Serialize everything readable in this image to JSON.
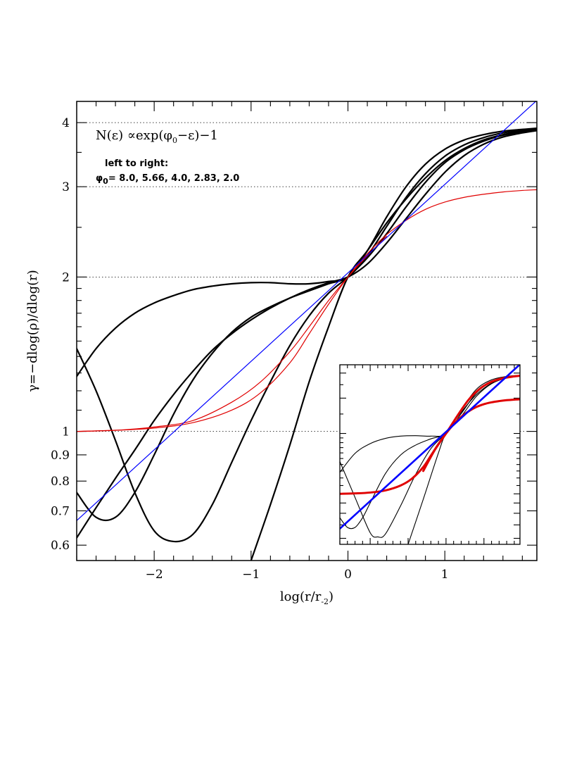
{
  "chart_data": {
    "type": "line",
    "xlabel": "log(r/r",
    "xlabel_sub": "-2",
    "xlabel_close": ")",
    "ylabel": "γ=−dlog(ρ)/dlog(r)",
    "xlim": [
      -2.8,
      1.95
    ],
    "ylim": [
      0.56,
      4.4
    ],
    "yscale": "log",
    "x_ticks": [
      -2,
      -1,
      0,
      1
    ],
    "x_tick_labels": [
      "−2",
      "−1",
      "0",
      "1"
    ],
    "y_ticks": [
      0.6,
      0.7,
      0.8,
      0.9,
      1,
      2,
      3,
      4
    ],
    "y_tick_labels": [
      "0.6",
      "0.7",
      "0.8",
      "0.9",
      "1",
      "2",
      "3",
      "4"
    ],
    "hlines": [
      1,
      2,
      3,
      4
    ],
    "annotation_formula": "N(ε) ∝exp(φ",
    "annotation_formula_sub": "0",
    "annotation_formula_end": "−ε)−1",
    "annotation_line1": "left to right:",
    "annotation_phi": "φ",
    "annotation_phi_sub": "0",
    "annotation_line2": "= 8.0, 5.66, 4.0, 2.83, 2.0",
    "series": [
      {
        "color": "#000000",
        "width": 2.2,
        "x": [
          -2.8,
          -2.6,
          -2.4,
          -2.2,
          -2.0,
          -1.8,
          -1.6,
          -1.4,
          -1.2,
          -1.0,
          -0.8,
          -0.6,
          -0.4,
          -0.2,
          0,
          0.2,
          0.4,
          0.6,
          0.8,
          1.0,
          1.2,
          1.4,
          1.6,
          1.8,
          1.95
        ],
        "y": [
          1.28,
          1.45,
          1.59,
          1.7,
          1.78,
          1.84,
          1.89,
          1.92,
          1.94,
          1.95,
          1.95,
          1.94,
          1.94,
          1.96,
          2.0,
          2.25,
          2.62,
          3.0,
          3.32,
          3.55,
          3.7,
          3.79,
          3.85,
          3.88,
          3.9
        ]
      },
      {
        "color": "#000000",
        "width": 2.2,
        "x": [
          -2.8,
          -2.6,
          -2.4,
          -2.2,
          -2.0,
          -1.8,
          -1.6,
          -1.4,
          -1.2,
          -1.0,
          -0.8,
          -0.6,
          -0.4,
          -0.2,
          0,
          0.2,
          0.4,
          0.6,
          0.8,
          1.0,
          1.2,
          1.4,
          1.6,
          1.8,
          1.95
        ],
        "y": [
          0.76,
          0.68,
          0.68,
          0.76,
          0.9,
          1.08,
          1.26,
          1.42,
          1.56,
          1.67,
          1.75,
          1.82,
          1.88,
          1.94,
          2.0,
          2.2,
          2.51,
          2.86,
          3.18,
          3.44,
          3.62,
          3.74,
          3.82,
          3.86,
          3.88
        ]
      },
      {
        "color": "#000000",
        "width": 2.2,
        "x": [
          -2.8,
          -2.6,
          -2.4,
          -2.2,
          -2.0,
          -1.8,
          -1.6,
          -1.4,
          -1.2,
          -1.0,
          -0.8,
          -0.6,
          -0.4,
          -0.2,
          0,
          0.2,
          0.4,
          0.6,
          0.8,
          1.0,
          1.2,
          1.4,
          1.6,
          1.8,
          1.95
        ],
        "y": [
          1.45,
          1.2,
          0.96,
          0.76,
          0.64,
          0.61,
          0.63,
          0.72,
          0.87,
          1.05,
          1.25,
          1.47,
          1.68,
          1.86,
          2.0,
          2.18,
          2.43,
          2.74,
          3.06,
          3.34,
          3.54,
          3.68,
          3.78,
          3.83,
          3.86
        ]
      },
      {
        "color": "#000000",
        "width": 2.2,
        "x": [
          -2.8,
          -2.6,
          -2.4,
          -2.2,
          -2.0,
          -1.8,
          -1.6,
          -1.4,
          -1.2,
          -1.0,
          -0.8,
          -0.6,
          -0.4,
          -0.2,
          0,
          0.2,
          0.4,
          0.6,
          0.8,
          1.0,
          1.2,
          1.4,
          1.6,
          1.8,
          1.95
        ],
        "y": [
          0.62,
          0.71,
          0.81,
          0.92,
          1.05,
          1.18,
          1.31,
          1.44,
          1.55,
          1.65,
          1.74,
          1.82,
          1.89,
          1.95,
          2.0,
          2.12,
          2.33,
          2.6,
          2.9,
          3.2,
          3.45,
          3.63,
          3.75,
          3.82,
          3.86
        ]
      },
      {
        "color": "#000000",
        "width": 2.2,
        "x": [
          -1.0,
          -0.8,
          -0.6,
          -0.4,
          -0.2,
          0,
          0.2,
          0.4,
          0.6,
          0.8,
          1.0,
          1.2,
          1.4,
          1.6,
          1.8,
          1.95
        ],
        "y": [
          0.56,
          0.72,
          0.94,
          1.25,
          1.6,
          2.0,
          2.25,
          2.55,
          2.84,
          3.12,
          3.37,
          3.56,
          3.7,
          3.79,
          3.85,
          3.88
        ]
      },
      {
        "color": "#e00000",
        "width": 1.2,
        "x": [
          -2.8,
          -2.4,
          -2.0,
          -1.6,
          -1.2,
          -0.9,
          -0.6,
          -0.4,
          -0.2,
          0,
          0.2,
          0.4,
          0.6,
          0.8,
          1.0,
          1.2,
          1.4,
          1.6,
          1.8,
          1.95
        ],
        "y": [
          1.0,
          1.005,
          1.015,
          1.04,
          1.1,
          1.19,
          1.36,
          1.55,
          1.77,
          2.0,
          2.22,
          2.42,
          2.58,
          2.71,
          2.8,
          2.86,
          2.9,
          2.93,
          2.95,
          2.96
        ]
      },
      {
        "color": "#e00000",
        "width": 1.2,
        "x": [
          -2.8,
          -2.4,
          -2.0,
          -1.6,
          -1.2,
          -0.9,
          -0.6,
          -0.4,
          -0.2,
          0,
          0.2,
          0.4
        ],
        "y": [
          1.0,
          1.005,
          1.02,
          1.05,
          1.14,
          1.25,
          1.43,
          1.6,
          1.8,
          2.0,
          2.2,
          2.4
        ]
      },
      {
        "color": "#0000ff",
        "width": 1.2,
        "x": [
          -2.8,
          1.95
        ],
        "y": [
          0.67,
          4.42
        ]
      }
    ],
    "inset": {
      "xlim": [
        -2.8,
        1.95
      ],
      "ylim": [
        0.56,
        4.4
      ],
      "series": [
        {
          "color": "#000000",
          "width": 1.1,
          "x": [
            -2.8,
            -2.4,
            -2.0,
            -1.6,
            -1.2,
            -0.8,
            -0.4,
            0,
            0.4,
            0.8,
            1.2,
            1.6,
            1.95
          ],
          "y": [
            1.28,
            1.59,
            1.78,
            1.89,
            1.94,
            1.95,
            1.94,
            2.0,
            2.62,
            3.32,
            3.7,
            3.85,
            3.9
          ]
        },
        {
          "color": "#000000",
          "width": 1.1,
          "x": [
            -2.8,
            -2.6,
            -2.4,
            -2.2,
            -2.0,
            -1.6,
            -1.2,
            -0.8,
            -0.4,
            0,
            0.4,
            0.8,
            1.2,
            1.6,
            1.95
          ],
          "y": [
            0.76,
            0.68,
            0.68,
            0.76,
            0.9,
            1.26,
            1.56,
            1.75,
            1.88,
            2.0,
            2.51,
            3.18,
            3.62,
            3.82,
            3.88
          ]
        },
        {
          "color": "#000000",
          "width": 1.1,
          "x": [
            -2.8,
            -2.4,
            -2.0,
            -1.8,
            -1.6,
            -1.2,
            -0.8,
            -0.4,
            0,
            0.4,
            0.8,
            1.2,
            1.6,
            1.95
          ],
          "y": [
            1.45,
            0.96,
            0.64,
            0.61,
            0.63,
            0.87,
            1.25,
            1.68,
            2.0,
            2.43,
            3.06,
            3.54,
            3.78,
            3.86
          ]
        },
        {
          "color": "#000000",
          "width": 1.1,
          "x": [
            -1.0,
            -0.6,
            -0.2,
            0,
            0.4,
            0.8,
            1.2,
            1.6,
            1.95
          ],
          "y": [
            0.56,
            0.94,
            1.6,
            2.0,
            2.55,
            3.12,
            3.56,
            3.79,
            3.88
          ]
        },
        {
          "color": "#e00000",
          "width": 3.0,
          "x": [
            -2.8,
            -2.4,
            -2.0,
            -1.6,
            -1.2,
            -0.9,
            -0.6,
            -0.4,
            -0.2,
            0,
            0.2,
            0.4,
            0.6,
            0.8,
            1.0,
            1.2,
            1.4,
            1.6,
            1.8,
            1.95
          ],
          "y": [
            1.0,
            1.005,
            1.015,
            1.04,
            1.1,
            1.19,
            1.36,
            1.55,
            1.77,
            2.0,
            2.22,
            2.42,
            2.58,
            2.71,
            2.8,
            2.86,
            2.9,
            2.93,
            2.95,
            2.96
          ]
        },
        {
          "color": "#e00000",
          "width": 3.0,
          "x": [
            -0.6,
            -0.3,
            0,
            0.3,
            0.6,
            0.9,
            1.2,
            1.5,
            1.8,
            1.95
          ],
          "y": [
            1.3,
            1.65,
            2.0,
            2.45,
            2.95,
            3.35,
            3.62,
            3.77,
            3.85,
            3.88
          ]
        },
        {
          "color": "#0000ff",
          "width": 2.6,
          "x": [
            -2.8,
            1.95
          ],
          "y": [
            0.67,
            4.42
          ]
        }
      ]
    }
  }
}
